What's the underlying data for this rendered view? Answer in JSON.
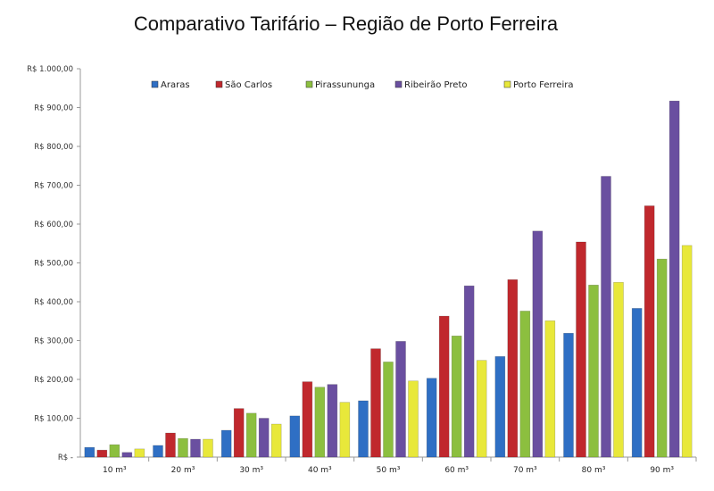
{
  "chart_data": {
    "type": "bar",
    "title": "Comparativo Tarifário – Região de Porto Ferreira",
    "xlabel": "",
    "ylabel": "",
    "ylim": [
      0,
      1000
    ],
    "yticks": [
      {
        "value": 0,
        "label": "R$ -"
      },
      {
        "value": 100,
        "label": "R$ 100,00"
      },
      {
        "value": 200,
        "label": "R$ 200,00"
      },
      {
        "value": 300,
        "label": "R$ 300,00"
      },
      {
        "value": 400,
        "label": "R$ 400,00"
      },
      {
        "value": 500,
        "label": "R$ 500,00"
      },
      {
        "value": 600,
        "label": "R$ 600,00"
      },
      {
        "value": 700,
        "label": "R$ 700,00"
      },
      {
        "value": 800,
        "label": "R$ 800,00"
      },
      {
        "value": 900,
        "label": "R$ 900,00"
      },
      {
        "value": 1000,
        "label": "R$ 1.000,00"
      }
    ],
    "grid": false,
    "legend_position": "top",
    "categories": [
      "10 m³",
      "20 m³",
      "30 m³",
      "40 m³",
      "50 m³",
      "60 m³",
      "70 m³",
      "80 m³",
      "90 m³"
    ],
    "series": [
      {
        "name": "Araras",
        "color": "#2f6fc4",
        "values": [
          25,
          30,
          69,
          106,
          145,
          203,
          259,
          319,
          383
        ]
      },
      {
        "name": "São Carlos",
        "color": "#c0282d",
        "values": [
          18,
          62,
          125,
          194,
          279,
          363,
          457,
          554,
          647
        ]
      },
      {
        "name": "Pirassununga",
        "color": "#8cbf3f",
        "values": [
          32,
          48,
          113,
          180,
          245,
          312,
          376,
          443,
          510
        ]
      },
      {
        "name": "Ribeirão Preto",
        "color": "#6a4fa0",
        "values": [
          12,
          46,
          100,
          187,
          298,
          441,
          582,
          723,
          917
        ]
      },
      {
        "name": "Porto Ferreira",
        "color": "#e8e83a",
        "values": [
          21,
          46,
          85,
          141,
          196,
          249,
          351,
          450,
          545
        ]
      }
    ]
  }
}
